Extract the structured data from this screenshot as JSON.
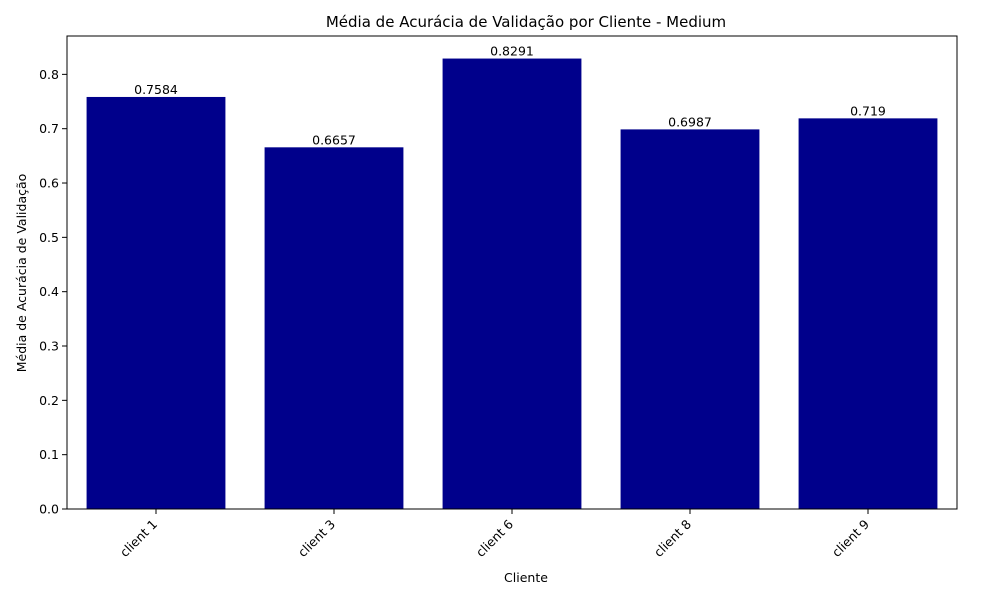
{
  "chart_data": {
    "type": "bar",
    "title": "Média de Acurácia de Validação por Cliente - Medium",
    "xlabel": "Cliente",
    "ylabel": "Média de Acurácia de Validação",
    "categories": [
      "client 1",
      "client 3",
      "client 6",
      "client 8",
      "client 9"
    ],
    "values": [
      0.7584,
      0.6657,
      0.8291,
      0.6987,
      0.719
    ],
    "value_labels": [
      "0.7584",
      "0.6657",
      "0.8291",
      "0.6987",
      "0.719"
    ],
    "ylim": [
      0,
      0.8706
    ],
    "yticks": [
      0.0,
      0.1,
      0.2,
      0.3,
      0.4,
      0.5,
      0.6,
      0.7,
      0.8
    ],
    "ytick_labels": [
      "0.0",
      "0.1",
      "0.2",
      "0.3",
      "0.4",
      "0.5",
      "0.6",
      "0.7",
      "0.8"
    ],
    "bar_color": "#00008b",
    "xtick_rotation_deg": 45,
    "grid": false,
    "legend": "none"
  }
}
